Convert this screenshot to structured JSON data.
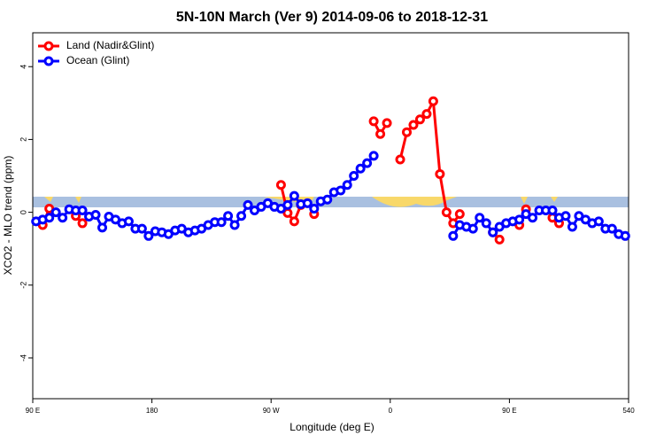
{
  "chart_data": {
    "type": "line",
    "title": "5N-10N March (Ver 9)   2014-09-06 to 2018-12-31",
    "x_label": "Longitude (deg E)",
    "y_label": "XCO2 - MLO trend (ppm)",
    "x": [
      92.5,
      97.5,
      102.5,
      107.5,
      112.5,
      117.5,
      122.5,
      127.5,
      132.5,
      137.5,
      142.5,
      147.5,
      152.5,
      157.5,
      162.5,
      167.5,
      172.5,
      177.5,
      182.5,
      187.5,
      192.5,
      197.5,
      202.5,
      207.5,
      212.5,
      217.5,
      222.5,
      227.5,
      232.5,
      237.5,
      242.5,
      247.5,
      252.5,
      257.5,
      262.5,
      267.5,
      272.5,
      277.5,
      282.5,
      287.5,
      292.5,
      297.5,
      302.5,
      307.5,
      312.5,
      317.5,
      322.5,
      327.5,
      332.5,
      337.5,
      342.5,
      347.5,
      352.5,
      357.5,
      362.5,
      367.5,
      372.5,
      377.5,
      382.5,
      387.5,
      392.5,
      397.5,
      402.5,
      407.5,
      412.5,
      417.5,
      422.5,
      427.5,
      432.5,
      437.5,
      442.5,
      447.5,
      452.5,
      457.5,
      462.5,
      467.5,
      472.5,
      477.5,
      482.5,
      487.5,
      492.5,
      497.5,
      502.5,
      507.5,
      512.5,
      517.5,
      522.5,
      527.5,
      532.5,
      537.5
    ],
    "series": [
      {
        "name": "Land (Nadir&Glint)",
        "color": "#ff0000",
        "values": [
          null,
          -0.35,
          0.1,
          null,
          null,
          null,
          -0.1,
          -0.3,
          null,
          null,
          null,
          null,
          null,
          null,
          null,
          null,
          null,
          null,
          null,
          null,
          null,
          null,
          null,
          null,
          null,
          null,
          null,
          null,
          null,
          null,
          null,
          null,
          null,
          null,
          null,
          null,
          null,
          0.75,
          -0.02,
          -0.25,
          0.2,
          null,
          -0.05,
          null,
          null,
          null,
          null,
          null,
          null,
          null,
          null,
          2.5,
          2.15,
          2.45,
          null,
          1.45,
          2.2,
          2.4,
          2.55,
          2.7,
          3.05,
          1.05,
          0.0,
          -0.3,
          -0.05,
          null,
          null,
          null,
          null,
          -0.55,
          -0.75,
          null,
          null,
          -0.35,
          0.08,
          null,
          null,
          null,
          -0.15,
          -0.3,
          null,
          null,
          null,
          null,
          null,
          null,
          null,
          null,
          null,
          null
        ]
      },
      {
        "name": "Ocean (Glint)",
        "color": "#0000ff",
        "values": [
          -0.25,
          -0.2,
          -0.15,
          0.0,
          -0.15,
          0.08,
          0.05,
          0.05,
          -0.12,
          -0.07,
          -0.42,
          -0.12,
          -0.2,
          -0.3,
          -0.25,
          -0.45,
          -0.45,
          -0.65,
          -0.52,
          -0.55,
          -0.6,
          -0.5,
          -0.45,
          -0.55,
          -0.5,
          -0.45,
          -0.35,
          -0.27,
          -0.27,
          -0.1,
          -0.35,
          -0.1,
          0.2,
          0.05,
          0.15,
          0.25,
          0.15,
          0.1,
          0.2,
          0.45,
          0.22,
          0.25,
          0.1,
          0.3,
          0.35,
          0.55,
          0.6,
          0.75,
          1.0,
          1.2,
          1.35,
          1.55,
          null,
          null,
          null,
          null,
          null,
          null,
          null,
          null,
          null,
          null,
          null,
          -0.65,
          -0.35,
          -0.4,
          -0.45,
          -0.15,
          -0.3,
          -0.55,
          -0.4,
          -0.3,
          -0.25,
          -0.2,
          -0.05,
          -0.15,
          0.05,
          0.05,
          0.05,
          -0.15,
          -0.1,
          -0.4,
          -0.1,
          -0.2,
          -0.3,
          -0.25,
          -0.45,
          -0.45,
          -0.6,
          -0.65
        ]
      }
    ],
    "xlim": [
      90,
      540
    ],
    "xticks": [
      {
        "value": 90,
        "label": "90 E"
      },
      180,
      {
        "value": 270,
        "label": "90 W"
      },
      {
        "value": 360,
        "label": "0"
      },
      {
        "value": 450,
        "label": "90 E"
      },
      540
    ],
    "ylim": [
      -5.12,
      4.93
    ],
    "yticks": [
      -4,
      -2,
      0,
      2,
      4
    ],
    "legend": "top-left"
  }
}
